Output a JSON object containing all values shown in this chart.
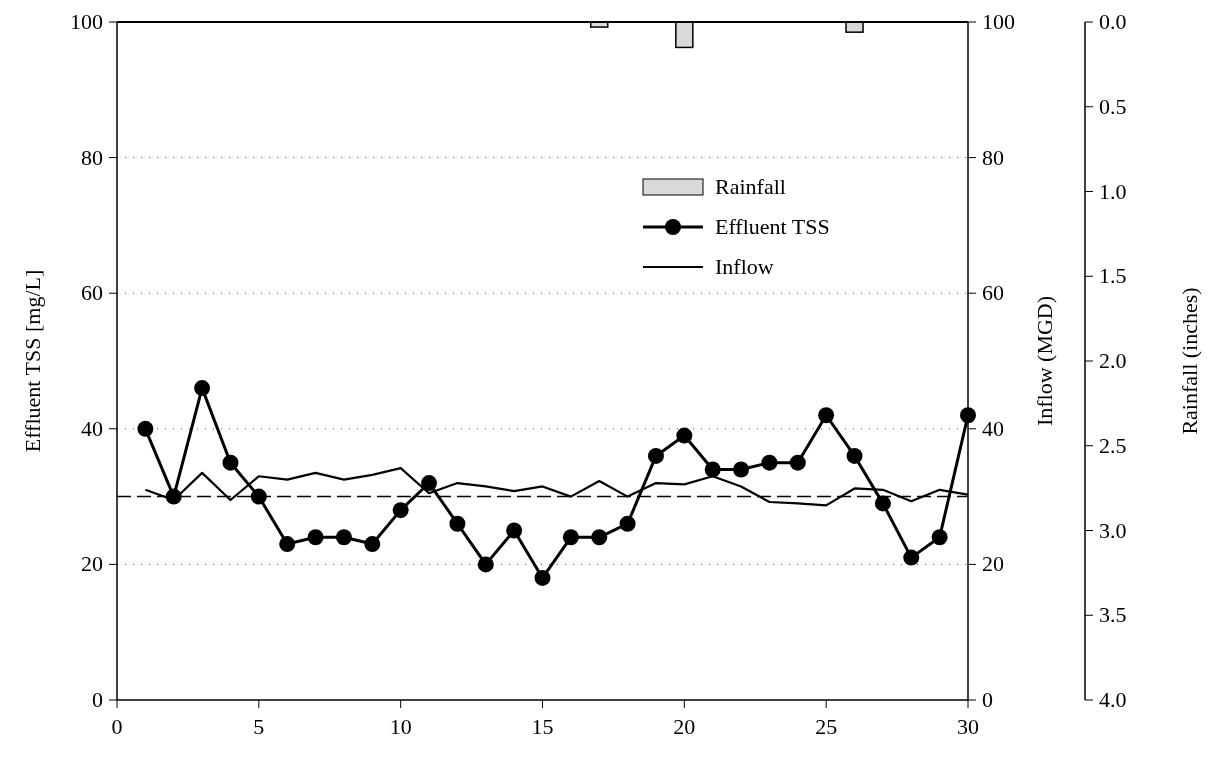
{
  "chart_data": {
    "type": "line",
    "ylabel": "Effluent TSS [mg/L]",
    "y2label": "Inflow (MGD)",
    "y3label": "Rainfall (inches)",
    "x": [
      1,
      2,
      3,
      4,
      5,
      6,
      7,
      8,
      9,
      10,
      11,
      12,
      13,
      14,
      15,
      16,
      17,
      18,
      19,
      20,
      21,
      22,
      23,
      24,
      25,
      26,
      27,
      28,
      29,
      30
    ],
    "xlim": [
      0,
      30
    ],
    "xticks": [
      0,
      5,
      10,
      15,
      20,
      25,
      30
    ],
    "ylim": [
      0,
      100
    ],
    "yticks": [
      0,
      20,
      40,
      60,
      80,
      100
    ],
    "y2lim": [
      0,
      100
    ],
    "y2ticks": [
      0,
      20,
      40,
      60,
      80,
      100
    ],
    "y3lim": [
      4,
      0
    ],
    "y3ticks": [
      {
        "value": 0,
        "label": "0.0"
      },
      {
        "value": 0.5,
        "label": "0.5"
      },
      {
        "value": 1,
        "label": "1.0"
      },
      {
        "value": 1.5,
        "label": "1.5"
      },
      {
        "value": 2,
        "label": "2.0"
      },
      {
        "value": 2.5,
        "label": "2.5"
      },
      {
        "value": 3,
        "label": "3.0"
      },
      {
        "value": 3.5,
        "label": "3.5"
      },
      {
        "value": 4,
        "label": "4.0"
      }
    ],
    "grid": "y",
    "legend": "top right",
    "ref_lines": [
      {
        "axis": "y",
        "value": 30,
        "color": "#000000",
        "line_style": "dashed"
      }
    ],
    "series": [
      {
        "name": "Rainfall",
        "type": "bar",
        "axis": "y3",
        "color": "#d9d9d9",
        "values": [
          0,
          0,
          0,
          0,
          0,
          0,
          0,
          0,
          0,
          0,
          0,
          0,
          0,
          0,
          0,
          0,
          0.03,
          0,
          0,
          0.15,
          0,
          0,
          0,
          0,
          0,
          0.06,
          0,
          0,
          0,
          0
        ]
      },
      {
        "name": "Effluent TSS",
        "marker": "circle",
        "color": "#000000",
        "values": [
          40,
          30,
          46,
          35,
          30,
          23,
          24,
          24,
          23,
          28,
          32,
          26,
          20,
          25,
          18,
          24,
          24,
          26,
          36,
          39,
          34,
          34,
          35,
          35,
          42,
          36,
          29,
          21,
          24,
          42
        ]
      },
      {
        "name": "Inflow",
        "type": "line",
        "axis": "y2",
        "marker": "none",
        "color": "#000000",
        "values": [
          31,
          29.5,
          33.5,
          29.5,
          33,
          32.5,
          33.5,
          32.5,
          33.2,
          34.2,
          30.5,
          32,
          31.5,
          30.8,
          31.5,
          30,
          32.3,
          30,
          32,
          31.8,
          33,
          31.5,
          29.2,
          29,
          28.7,
          31.2,
          31,
          29.3,
          31,
          30.3
        ]
      }
    ]
  }
}
